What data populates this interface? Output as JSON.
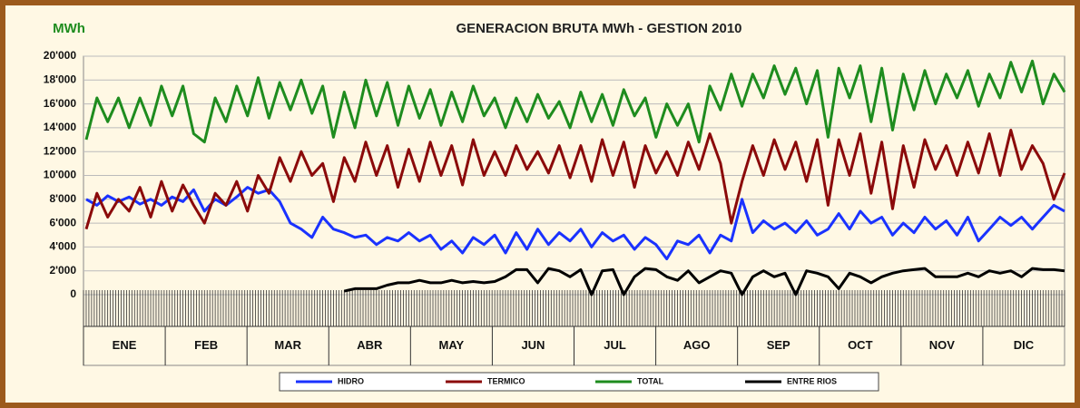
{
  "chart_data": {
    "type": "line",
    "title": "GENERACION BRUTA MWh - GESTION 2010",
    "y_label": "MWh",
    "categories": [
      "ENE",
      "FEB",
      "MAR",
      "ABR",
      "MAY",
      "JUN",
      "JUL",
      "AGO",
      "SEP",
      "OCT",
      "NOV",
      "DIC"
    ],
    "x": [
      1,
      5,
      9,
      13,
      17,
      21,
      25,
      29,
      33,
      37,
      41,
      45,
      49,
      53,
      57,
      61,
      65,
      69,
      73,
      77,
      81,
      85,
      89,
      93,
      97,
      101,
      105,
      109,
      113,
      117,
      121,
      125,
      129,
      133,
      137,
      141,
      145,
      149,
      153,
      157,
      161,
      165,
      169,
      173,
      177,
      181,
      185,
      189,
      193,
      197,
      201,
      205,
      209,
      213,
      217,
      221,
      225,
      229,
      233,
      237,
      241,
      245,
      249,
      253,
      257,
      261,
      265,
      269,
      273,
      277,
      281,
      285,
      289,
      293,
      297,
      301,
      305,
      309,
      313,
      317,
      321,
      325,
      329,
      333,
      337,
      341,
      345,
      349,
      353,
      357,
      361,
      365
    ],
    "xlim": [
      0,
      365
    ],
    "ylim": [
      0,
      20000
    ],
    "yticks": [
      0,
      {
        "value": 2000,
        "label": "2'000"
      },
      {
        "value": 4000,
        "label": "4'000"
      },
      {
        "value": 6000,
        "label": "6'000"
      },
      {
        "value": 8000,
        "label": "8'000"
      },
      {
        "value": 10000,
        "label": "10'000"
      },
      {
        "value": 12000,
        "label": "12'000"
      },
      {
        "value": 14000,
        "label": "14'000"
      },
      {
        "value": 16000,
        "label": "16'000"
      },
      {
        "value": 18000,
        "label": "18'000"
      },
      {
        "value": 20000,
        "label": "20'000"
      }
    ],
    "grid": true,
    "legend": "bottom",
    "series": [
      {
        "name": "HIDRO",
        "color": "#1a32ff",
        "values": [
          8000,
          7500,
          8300,
          7800,
          8200,
          7600,
          8000,
          7500,
          8200,
          7800,
          8800,
          7000,
          8000,
          7500,
          8200,
          9000,
          8500,
          8800,
          7800,
          6000,
          5500,
          4800,
          6500,
          5500,
          5200,
          4800,
          5000,
          4200,
          4800,
          4500,
          5200,
          4500,
          5000,
          3800,
          4500,
          3500,
          4800,
          4200,
          5000,
          3500,
          5200,
          3800,
          5500,
          4200,
          5200,
          4500,
          5500,
          4000,
          5200,
          4500,
          5000,
          3800,
          4800,
          4200,
          3000,
          4500,
          4200,
          5000,
          3500,
          5000,
          4500,
          8000,
          5200,
          6200,
          5500,
          6000,
          5200,
          6200,
          5000,
          5500,
          6800,
          5500,
          7000,
          6000,
          6500,
          5000,
          6000,
          5200,
          6500,
          5500,
          6200,
          5000,
          6500,
          4500,
          5500,
          6500,
          5800,
          6500,
          5500,
          6500,
          7500,
          7000
        ]
      },
      {
        "name": "TERMICO",
        "color": "#8b0a0a",
        "values": [
          5500,
          8500,
          6500,
          8000,
          7000,
          9000,
          6500,
          9500,
          7000,
          9200,
          7500,
          6000,
          8500,
          7500,
          9500,
          7000,
          10000,
          8500,
          11500,
          9500,
          12000,
          10000,
          11000,
          7800,
          11500,
          9500,
          12800,
          10000,
          12500,
          9000,
          12200,
          9500,
          12800,
          10000,
          12500,
          9200,
          13000,
          10000,
          12000,
          10000,
          12500,
          10500,
          12000,
          10200,
          12500,
          9800,
          12500,
          9500,
          13000,
          10000,
          12800,
          9000,
          12500,
          10200,
          12000,
          10000,
          12800,
          10500,
          13500,
          11000,
          6000,
          9500,
          12500,
          10000,
          13000,
          10500,
          12800,
          9500,
          13000,
          7500,
          13000,
          10000,
          13500,
          8500,
          12800,
          7200,
          12500,
          9000,
          13000,
          10500,
          12500,
          10000,
          12800,
          10200,
          13500,
          10000,
          13800,
          10500,
          12500,
          11000,
          8000,
          10200
        ]
      },
      {
        "name": "TOTAL",
        "color": "#1e8c1e",
        "values": [
          13000,
          16500,
          14500,
          16500,
          14000,
          16500,
          14200,
          17500,
          15000,
          17500,
          13500,
          12800,
          16500,
          14500,
          17500,
          15000,
          18200,
          14800,
          17800,
          15500,
          18000,
          15200,
          17500,
          13200,
          17000,
          14000,
          18000,
          15000,
          17800,
          14200,
          17500,
          14800,
          17200,
          14200,
          17000,
          14500,
          17500,
          15000,
          16500,
          14000,
          16500,
          14500,
          16800,
          14800,
          16200,
          14000,
          17000,
          14500,
          16800,
          14200,
          17200,
          15000,
          16500,
          13200,
          16000,
          14200,
          16000,
          12800,
          17500,
          15500,
          18500,
          15800,
          18500,
          16500,
          19200,
          16800,
          19000,
          16000,
          18800,
          13200,
          19000,
          16500,
          19200,
          14500,
          19000,
          13800,
          18500,
          15500,
          18800,
          16000,
          18500,
          16500,
          18800,
          15800,
          18500,
          16500,
          19500,
          17000,
          19600,
          16000,
          18500,
          17000
        ]
      },
      {
        "name": "ENTRE RIOS",
        "color": "#000000",
        "values": [
          null,
          null,
          null,
          null,
          null,
          null,
          null,
          null,
          null,
          null,
          null,
          null,
          null,
          null,
          null,
          null,
          null,
          null,
          null,
          null,
          null,
          null,
          null,
          null,
          300,
          500,
          500,
          500,
          800,
          1000,
          1000,
          1200,
          1000,
          1000,
          1200,
          1000,
          1100,
          1000,
          1100,
          1500,
          2100,
          2100,
          1000,
          2200,
          2000,
          1500,
          2100,
          0,
          2000,
          2100,
          0,
          1500,
          2200,
          2100,
          1500,
          1200,
          2000,
          1000,
          1500,
          2000,
          1800,
          0,
          1500,
          2000,
          1500,
          1800,
          0,
          2000,
          1800,
          1500,
          500,
          1800,
          1500,
          1000,
          1500,
          1800,
          2000,
          2100,
          2200,
          1500,
          1500,
          1500,
          1800,
          1500,
          2000,
          1800,
          2000,
          1500,
          2200,
          2100,
          2100,
          2000
        ]
      }
    ]
  }
}
